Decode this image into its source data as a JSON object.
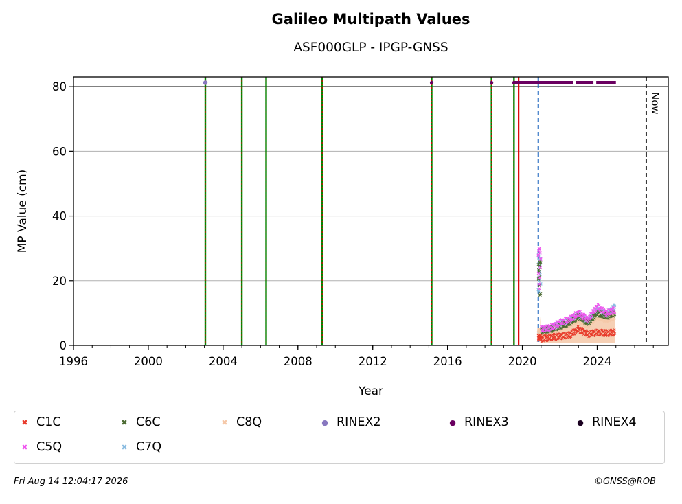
{
  "chart_data": {
    "type": "scatter",
    "title": "Galileo Multipath Values",
    "subtitle": "ASF000GLP - IPGP-GNSS",
    "xlabel": "Year",
    "ylabel": "MP Value (cm)",
    "xlim": [
      1996,
      2027.8
    ],
    "ylim": [
      0,
      83
    ],
    "x_ticks": [
      "1996",
      "2000",
      "2004",
      "2008",
      "2012",
      "2016",
      "2020",
      "2024"
    ],
    "y_ticks": [
      "0",
      "20",
      "40",
      "60",
      "80"
    ],
    "grid": "horizontal",
    "threshold_line": 80,
    "now_label": "Now",
    "now_x": 2026.62,
    "equipment_change_lines": [
      2003.05,
      2005.0,
      2006.3,
      2009.3,
      2015.15,
      2018.35,
      2019.55
    ],
    "antenna_change_line": 2019.8,
    "data_start_line": 2020.85,
    "rinex_markers": {
      "RINEX2": [
        2003.05
      ],
      "RINEX3": [
        2015.15,
        2018.35,
        2019.55
      ],
      "RINEX3_continuous": [
        2019.55,
        2024.1
      ]
    },
    "series": [
      {
        "name": "C1C",
        "color": "#e8392a",
        "marker": "x",
        "x": [
          2020.85,
          2021.0,
          2021.5,
          2022.0,
          2022.5,
          2023.0,
          2023.5,
          2024.0,
          2024.5,
          2024.95
        ],
        "y": [
          3,
          2,
          2.5,
          2.8,
          3.2,
          5,
          3.5,
          4,
          3.8,
          4
        ]
      },
      {
        "name": "C5Q",
        "color": "#ee55ee",
        "marker": "x",
        "x": [
          2020.85,
          2021.0,
          2021.5,
          2022.0,
          2022.5,
          2023.0,
          2023.5,
          2024.0,
          2024.5,
          2024.95
        ],
        "y": [
          30,
          5,
          5.5,
          7,
          8,
          10,
          8,
          12,
          10,
          11
        ]
      },
      {
        "name": "C6C",
        "color": "#4a6a30",
        "marker": "x",
        "x": [
          2020.85,
          2021.0,
          2021.5,
          2022.0,
          2022.5,
          2023.0,
          2023.5,
          2024.0,
          2024.5,
          2024.95
        ],
        "y": [
          26,
          4.5,
          5,
          6,
          7,
          9,
          7,
          10,
          9,
          10
        ]
      },
      {
        "name": "C7Q",
        "color": "#88bbe0",
        "marker": "x",
        "x": [
          2020.85,
          2021.0,
          2021.5,
          2022.0,
          2022.5,
          2023.0,
          2023.5,
          2024.0,
          2024.5,
          2024.95
        ],
        "y": [
          28,
          4.8,
          5.2,
          6.5,
          7.5,
          9.5,
          7.5,
          11,
          9.5,
          12
        ]
      },
      {
        "name": "C8Q",
        "color": "#f5c8a8",
        "marker": "x",
        "x": [
          2020.85,
          2021.0,
          2021.5,
          2022.0,
          2022.5,
          2023.0,
          2023.5,
          2024.0,
          2024.5,
          2024.95
        ],
        "y": [
          5,
          4,
          4.5,
          5.5,
          6.5,
          8,
          6,
          9,
          8,
          9
        ]
      },
      {
        "name": "RINEX2",
        "color": "#8878c0",
        "marker": "o"
      },
      {
        "name": "RINEX3",
        "color": "#6a0060",
        "marker": "o"
      },
      {
        "name": "RINEX4",
        "color": "#1a0020",
        "marker": "o"
      }
    ],
    "legend_placement": "bottom"
  },
  "footer": {
    "timestamp": "Fri Aug 14 12:04:17 2026",
    "credit": "©GNSS@ROB"
  }
}
